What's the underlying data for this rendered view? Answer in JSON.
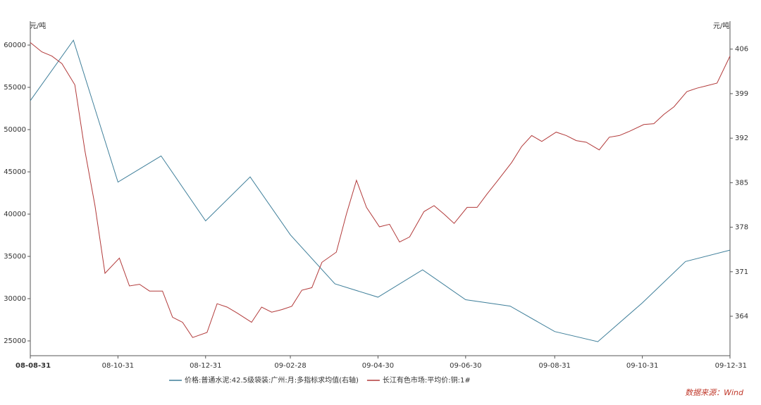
{
  "chart_data": {
    "type": "line",
    "y_unit": "元/吨",
    "y2_unit": "元/吨",
    "source": "数据来源：Wind",
    "xlim": [
      "08-08-31",
      "09-12-31"
    ],
    "xticks": [
      "08-08-31",
      "08-10-31",
      "08-12-31",
      "09-02-28",
      "09-04-30",
      "09-06-30",
      "09-08-31",
      "09-10-31",
      "09-12-31"
    ],
    "ylim": [
      23250,
      62833
    ],
    "yticks": [
      25000,
      30000,
      35000,
      40000,
      45000,
      50000,
      55000,
      60000
    ],
    "y2lim": [
      357.8,
      410.4
    ],
    "y2ticks": [
      364,
      371,
      378,
      385,
      392,
      399,
      406
    ],
    "series": [
      {
        "name": "价格:普通水泥:42.5级袋装:广州:月:多指标求均值(右轴)",
        "color": "#3f7f9a",
        "axis": "y2",
        "x": [
          "08-08-31",
          "08-09-30",
          "08-10-31",
          "08-11-30",
          "08-12-31",
          "09-01-31",
          "09-02-28",
          "09-03-31",
          "09-04-30",
          "09-05-31",
          "09-06-30",
          "09-07-31",
          "09-08-31",
          "09-09-30",
          "09-10-31",
          "09-11-30",
          "09-12-31"
        ],
        "values": [
          397.9,
          407.4,
          385.1,
          389.2,
          379.0,
          385.9,
          376.8,
          369.1,
          367.0,
          371.3,
          366.6,
          365.6,
          361.6,
          360.0,
          366.1,
          372.6,
          374.4
        ]
      },
      {
        "name": "长江有色市场:平均价:铜:1#",
        "color": "#b23a3a",
        "x": [
          "08-08-31",
          "08-09-08",
          "08-09-15",
          "08-09-22",
          "08-10-01",
          "08-10-08",
          "08-10-15",
          "08-10-22",
          "08-11-01",
          "08-11-08",
          "08-11-15",
          "08-11-22",
          "08-12-01",
          "08-12-08",
          "08-12-15",
          "08-12-22",
          "09-01-01",
          "09-01-08",
          "09-01-15",
          "09-01-22",
          "09-02-01",
          "09-02-08",
          "09-02-15",
          "09-02-22",
          "09-03-01",
          "09-03-08",
          "09-03-15",
          "09-03-22",
          "09-04-01",
          "09-04-08",
          "09-04-15",
          "09-04-22",
          "09-05-01",
          "09-05-08",
          "09-05-15",
          "09-05-22",
          "09-06-01",
          "09-06-08",
          "09-06-15",
          "09-06-22",
          "09-07-01",
          "09-07-08",
          "09-07-15",
          "09-07-22",
          "09-08-01",
          "09-08-08",
          "09-08-15",
          "09-08-22",
          "09-09-01",
          "09-09-08",
          "09-09-15",
          "09-09-22",
          "09-10-01",
          "09-10-08",
          "09-10-15",
          "09-10-22",
          "09-11-01",
          "09-11-08",
          "09-11-15",
          "09-11-22",
          "09-12-01",
          "09-12-08",
          "09-12-15",
          "09-12-22",
          "09-12-31"
        ],
        "values": [
          60300,
          59200,
          58700,
          57800,
          55300,
          47500,
          41000,
          33000,
          34800,
          31500,
          31700,
          30900,
          30900,
          27800,
          27200,
          25400,
          26000,
          29400,
          29000,
          28300,
          27200,
          29000,
          28400,
          28700,
          29100,
          31000,
          31300,
          34300,
          35500,
          40000,
          44000,
          40800,
          38500,
          38800,
          36700,
          37300,
          40300,
          41000,
          40000,
          38900,
          40800,
          40800,
          42400,
          43900,
          46100,
          48000,
          49300,
          48600,
          49700,
          49300,
          48700,
          48500,
          47600,
          49100,
          49300,
          49800,
          50600,
          50700,
          51800,
          52700,
          54500,
          54900,
          55200,
          55500,
          58700
        ]
      }
    ]
  }
}
